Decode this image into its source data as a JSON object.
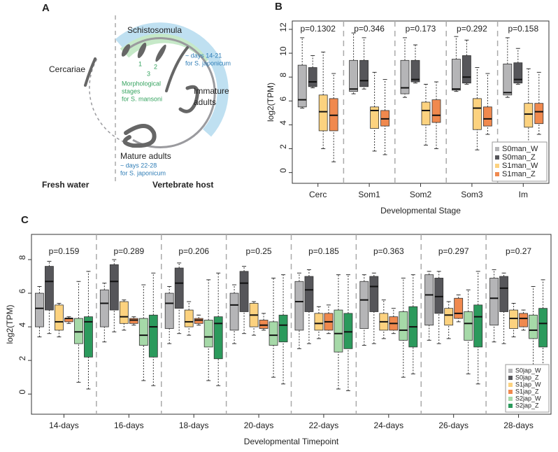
{
  "panel_a": {
    "panel_label": "A",
    "schistosomula": "Schistosomula",
    "cercariae": "Cercariae",
    "immature_adults": [
      "Immature",
      "adults"
    ],
    "mature_adults": "Mature adults",
    "days_early": [
      "~ days 14-21",
      "for S. japonicum"
    ],
    "days_late": [
      "~ days 22-28",
      "for S. japonicum"
    ],
    "stage_numbers": [
      "1",
      "2",
      "3"
    ],
    "morphological": [
      "Morphological",
      "stages",
      "for S. mansoni"
    ],
    "fresh_water": "Fresh water",
    "vertebrate_host": "Vertebrate host"
  },
  "chart_data": [
    {
      "type": "boxplot",
      "panel_label": "B",
      "xlabel": "Developmental Stage",
      "ylabel": "log2(TPM)",
      "categories": [
        "Cerc",
        "Som1",
        "Som2",
        "Som3",
        "Im"
      ],
      "annotations": [
        "p=0.1302",
        "p=0.346",
        "p=0.173",
        "p=0.292",
        "p=0.158"
      ],
      "ylim": [
        -0.9,
        12.7
      ],
      "yticks": [
        0,
        2,
        4,
        6,
        8,
        10,
        12
      ],
      "legend": "lower right",
      "series": [
        {
          "name": "S0man_W",
          "color": "#b5b5b7",
          "low": [
            5.4,
            6.6,
            6.3,
            6.8,
            6.3
          ],
          "q1": [
            5.5,
            6.8,
            6.6,
            6.9,
            6.5
          ],
          "median": [
            6.1,
            7.0,
            7.1,
            7.0,
            6.7
          ],
          "q3": [
            9.0,
            9.4,
            9.4,
            9.5,
            9.1
          ],
          "high": [
            11.3,
            11.7,
            11.3,
            11.4,
            11.3
          ]
        },
        {
          "name": "S0man_Z",
          "color": "#56565a",
          "low": [
            7.1,
            7.0,
            7.5,
            7.4,
            7.4
          ],
          "q1": [
            7.2,
            7.2,
            7.6,
            7.5,
            7.5
          ],
          "median": [
            7.6,
            7.7,
            7.8,
            8.0,
            7.8
          ],
          "q3": [
            8.8,
            9.4,
            9.4,
            9.8,
            9.2
          ],
          "high": [
            9.8,
            11.3,
            10.7,
            11.1,
            10.4
          ]
        },
        {
          "name": "S1man_W",
          "color": "#fcd27f",
          "low": [
            2.0,
            1.8,
            2.3,
            1.9,
            2.0
          ],
          "q1": [
            3.5,
            3.7,
            4.0,
            3.6,
            3.8
          ],
          "median": [
            5.1,
            5.2,
            5.2,
            5.4,
            4.9
          ],
          "q3": [
            6.5,
            5.5,
            5.9,
            6.2,
            5.8
          ],
          "high": [
            10.1,
            8.4,
            7.4,
            8.8,
            8.7
          ]
        },
        {
          "name": "S1man_Z",
          "color": "#f0894e",
          "low": [
            0.9,
            1.5,
            2.0,
            3.2,
            3.2
          ],
          "q1": [
            3.5,
            3.9,
            4.2,
            3.9,
            4.1
          ],
          "median": [
            4.8,
            4.5,
            4.8,
            4.5,
            5.1
          ],
          "q3": [
            6.2,
            5.2,
            6.1,
            5.5,
            5.8
          ],
          "high": [
            8.3,
            7.8,
            7.6,
            8.3,
            8.4
          ]
        }
      ]
    },
    {
      "type": "boxplot",
      "panel_label": "C",
      "xlabel": "Developmental Timepoint",
      "ylabel": "log2(TPM)",
      "categories": [
        "14-days",
        "16-days",
        "18-days",
        "20-days",
        "22-days",
        "24-days",
        "26-days",
        "28-days"
      ],
      "annotations": [
        "p=0.159",
        "p=0.289",
        "p=0.206",
        "p=0.25",
        "p=0.185",
        "p=0.363",
        "p=0.297",
        "p=0.27"
      ],
      "ylim": [
        -1.2,
        9.5
      ],
      "yticks": [
        0,
        2,
        4,
        6,
        8
      ],
      "legend": "lower right",
      "series": [
        {
          "name": "S0jap_W",
          "color": "#b5b5b7",
          "low": [
            3.4,
            3.1,
            3.0,
            3.0,
            2.7,
            2.9,
            3.2,
            3.1
          ],
          "q1": [
            4.0,
            4.0,
            3.9,
            3.8,
            3.8,
            3.9,
            4.1,
            4.1
          ],
          "median": [
            5.1,
            5.4,
            5.4,
            5.3,
            5.5,
            5.6,
            5.9,
            5.7
          ],
          "q3": [
            6.0,
            6.2,
            6.0,
            6.0,
            6.7,
            6.7,
            7.1,
            6.9
          ],
          "high": [
            6.4,
            6.6,
            6.4,
            6.5,
            7.2,
            7.1,
            7.3,
            7.4
          ]
        },
        {
          "name": "S0jap_Z",
          "color": "#56565a",
          "low": [
            3.6,
            3.7,
            3.6,
            3.6,
            3.0,
            3.0,
            3.0,
            3.0
          ],
          "q1": [
            5.0,
            5.0,
            5.1,
            4.9,
            4.9,
            4.9,
            4.8,
            4.9
          ],
          "median": [
            6.7,
            6.7,
            6.6,
            6.6,
            6.2,
            6.4,
            5.8,
            6.3
          ],
          "q3": [
            7.6,
            7.7,
            7.5,
            7.3,
            7.0,
            7.0,
            6.9,
            7.0
          ],
          "high": [
            7.9,
            8.0,
            7.8,
            7.6,
            7.4,
            7.2,
            7.3,
            7.2
          ]
        },
        {
          "name": "S1jap_W",
          "color": "#fcd27f",
          "low": [
            3.4,
            3.8,
            3.5,
            3.5,
            3.3,
            3.3,
            3.3,
            3.4
          ],
          "q1": [
            3.8,
            4.2,
            4.0,
            4.0,
            3.8,
            3.8,
            4.1,
            3.9
          ],
          "median": [
            4.3,
            4.6,
            4.3,
            4.7,
            4.2,
            4.3,
            4.7,
            4.5
          ],
          "q3": [
            5.3,
            5.5,
            5.0,
            5.4,
            4.8,
            4.8,
            5.1,
            5.0
          ],
          "high": [
            5.4,
            5.6,
            5.5,
            5.5,
            5.2,
            5.6,
            5.5,
            5.4
          ]
        },
        {
          "name": "S1jap_Z",
          "color": "#f0894e",
          "low": [
            4.2,
            4.1,
            4.1,
            3.8,
            3.6,
            3.6,
            4.3,
            3.8
          ],
          "q1": [
            4.3,
            4.2,
            4.2,
            3.9,
            3.8,
            3.8,
            4.5,
            4.0
          ],
          "median": [
            4.5,
            4.4,
            4.4,
            4.1,
            4.3,
            4.2,
            4.8,
            4.5
          ],
          "q3": [
            4.5,
            4.5,
            4.5,
            4.4,
            4.8,
            4.6,
            5.7,
            4.8
          ],
          "high": [
            4.6,
            4.6,
            4.7,
            4.8,
            5.3,
            5.1,
            5.9,
            5.0
          ]
        },
        {
          "name": "S2jap_W",
          "color": "#a6d9a8",
          "low": [
            0.7,
            0.8,
            0.8,
            1.0,
            0.3,
            1.0,
            1.2,
            1.1
          ],
          "q1": [
            3.0,
            2.9,
            2.8,
            2.9,
            2.5,
            3.2,
            3.2,
            3.3
          ],
          "median": [
            3.7,
            3.5,
            3.4,
            3.5,
            3.6,
            3.8,
            4.2,
            3.8
          ],
          "q3": [
            4.5,
            4.5,
            4.4,
            4.3,
            5.0,
            4.9,
            4.9,
            4.7
          ],
          "high": [
            6.7,
            6.5,
            6.8,
            6.9,
            7.1,
            6.9,
            6.2,
            6.4
          ]
        },
        {
          "name": "S2jap_Z",
          "color": "#2b9a5c",
          "low": [
            0.3,
            0.5,
            0.5,
            0.6,
            0.2,
            1.2,
            0.6,
            0.5
          ],
          "q1": [
            2.2,
            2.2,
            2.1,
            3.1,
            2.7,
            2.8,
            2.8,
            2.8
          ],
          "median": [
            4.3,
            4.0,
            4.2,
            4.1,
            3.7,
            4.0,
            4.6,
            4.2
          ],
          "q3": [
            4.6,
            4.7,
            4.6,
            4.7,
            4.8,
            5.2,
            5.3,
            5.1
          ],
          "high": [
            7.3,
            7.2,
            7.2,
            7.1,
            7.1,
            7.1,
            7.3,
            6.8
          ]
        }
      ]
    }
  ]
}
